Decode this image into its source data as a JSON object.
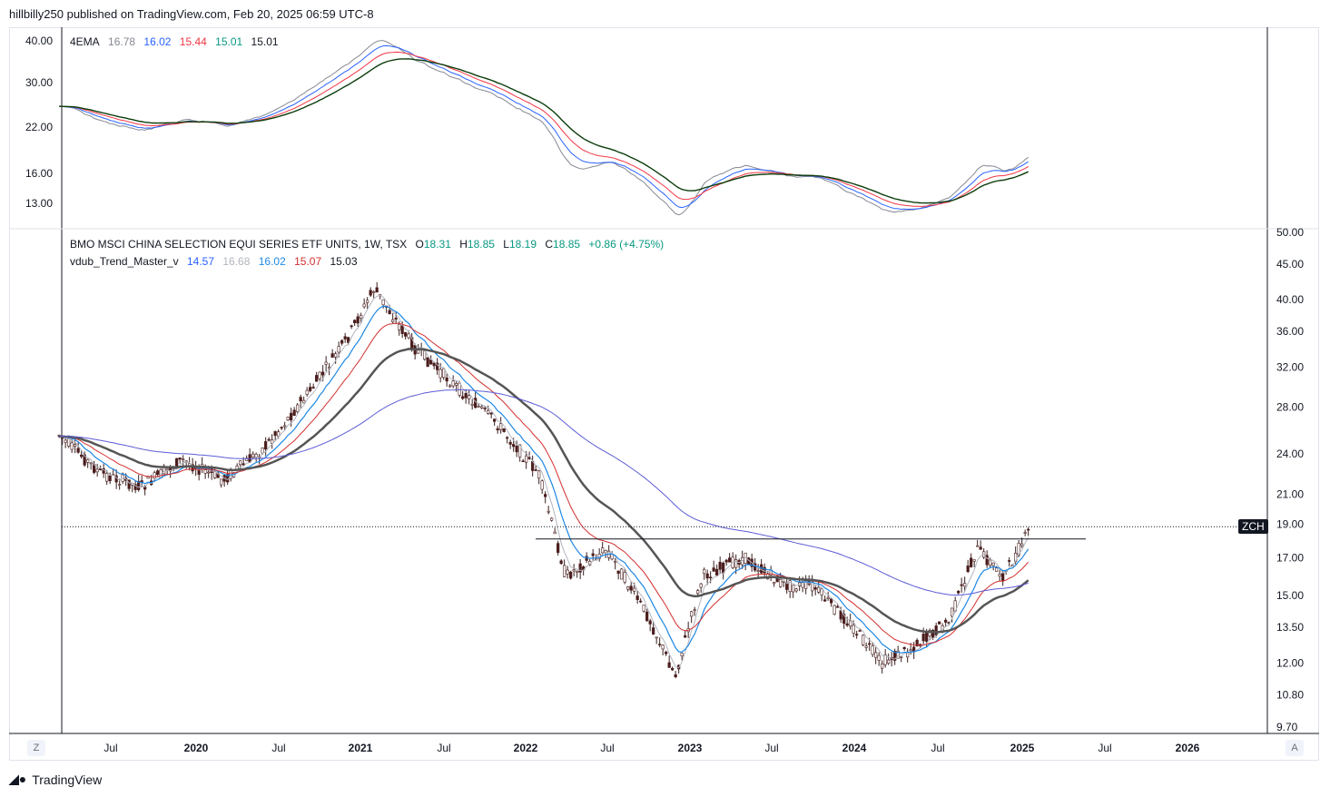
{
  "header": {
    "publisher": "hillbilly250 published on TradingView.com, Feb 20, 2025 06:59 UTC-8"
  },
  "footer": {
    "brand": "TradingView"
  },
  "buttons": {
    "zoom_left": "Z",
    "auto_right": "A"
  },
  "top_pane": {
    "indicator": "4EMA",
    "values": [
      "16.78",
      "16.02",
      "15.44",
      "15.01",
      "15.01"
    ],
    "value_colors": [
      "#868993",
      "#2962ff",
      "#f23645",
      "#089981",
      "#131722"
    ],
    "y_ticks": [
      "40.00",
      "30.00",
      "22.00",
      "16.00",
      "13.00"
    ]
  },
  "main_pane": {
    "symbol_line": "BMO MSCI CHINA SELECTION EQUI SERIES ETF UNITS, 1W, TSX",
    "ohlc": {
      "o_label": "O",
      "o": "18.31",
      "h_label": "H",
      "h": "18.85",
      "l_label": "L",
      "l": "18.19",
      "c_label": "C",
      "c": "18.85",
      "change": "+0.86 (+4.75%)"
    },
    "indicator": "vdub_Trend_Master_v",
    "values": [
      "14.57",
      "16.68",
      "16.02",
      "15.07",
      "15.03"
    ],
    "value_colors": [
      "#2962ff",
      "#b2b5be",
      "#1e88e5",
      "#d32f2f",
      "#131722"
    ],
    "y_ticks": [
      "50.00",
      "45.00",
      "40.00",
      "36.00",
      "32.00",
      "28.00",
      "24.00",
      "21.00",
      "19.00",
      "17.00",
      "15.00",
      "13.50",
      "12.00",
      "10.80",
      "9.70"
    ],
    "symbol_tag": "ZCH",
    "price_line": 18.85,
    "resistance_line": 18.1
  },
  "x_axis": {
    "labels": [
      "Jul",
      "2020",
      "Jul",
      "2021",
      "Jul",
      "2022",
      "Jul",
      "2023",
      "Jul",
      "2024",
      "Jul",
      "2025",
      "Jul",
      "2026"
    ]
  },
  "chart_data": {
    "type": "line",
    "x_start": "2019-03",
    "x_end": "2025-02",
    "price_series": {
      "name": "BMO MSCI CHINA SELECTION EQUI SERIES ETF UNITS",
      "x": [
        "2019-03",
        "2019-06",
        "2019-09",
        "2019-12",
        "2020-03",
        "2020-06",
        "2020-09",
        "2020-12",
        "2021-02",
        "2021-05",
        "2021-08",
        "2021-11",
        "2022-02",
        "2022-04",
        "2022-07",
        "2022-10",
        "2022-12",
        "2023-02",
        "2023-05",
        "2023-08",
        "2023-10",
        "2024-01",
        "2024-03",
        "2024-05",
        "2024-08",
        "2024-10",
        "2024-12",
        "2025-02"
      ],
      "y": [
        25.5,
        22.5,
        21.5,
        23.5,
        22.0,
        24.5,
        29.0,
        35.0,
        41.5,
        34.0,
        30.0,
        26.5,
        22.5,
        16.0,
        17.5,
        14.0,
        11.5,
        16.0,
        17.0,
        15.5,
        15.5,
        13.5,
        12.0,
        12.5,
        13.8,
        17.5,
        16.0,
        18.85
      ]
    },
    "series": [
      {
        "name": "4EMA",
        "values": [
          16.78,
          16.02,
          15.44,
          15.01,
          15.01
        ]
      },
      {
        "name": "vdub_Trend_Master_v",
        "values": [
          14.57,
          16.68,
          16.02,
          15.07,
          15.03
        ]
      }
    ],
    "ylim": [
      9.7,
      50.0
    ],
    "log_scale": true
  }
}
